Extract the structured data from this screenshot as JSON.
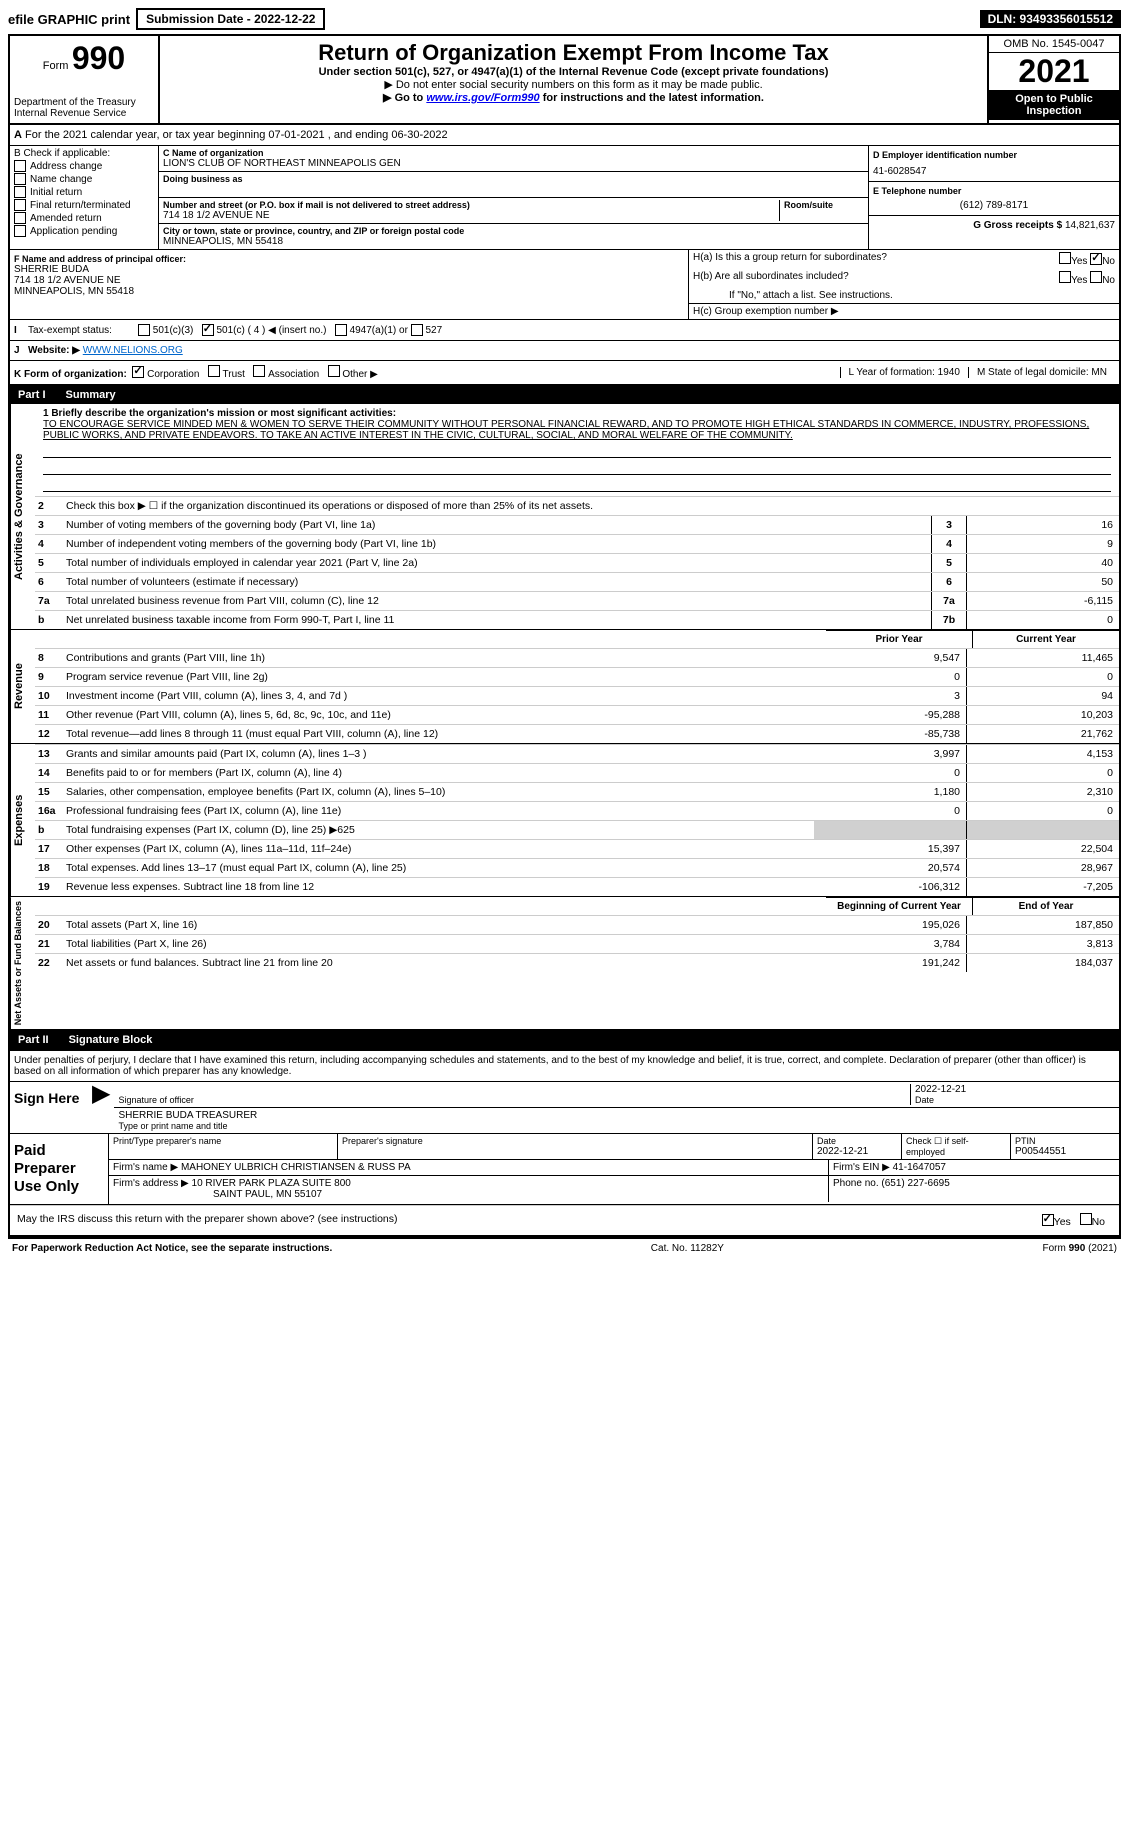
{
  "top": {
    "efile": "efile GRAPHIC print",
    "submission": "Submission Date - 2022-12-22",
    "dln": "DLN: 93493356015512"
  },
  "header": {
    "form_prefix": "Form",
    "form_number": "990",
    "title": "Return of Organization Exempt From Income Tax",
    "subtitle": "Under section 501(c), 527, or 4947(a)(1) of the Internal Revenue Code (except private foundations)",
    "warn": "▶ Do not enter social security numbers on this form as it may be made public.",
    "link_line": "▶ Go to www.irs.gov/Form990 for instructions and the latest information.",
    "omb": "OMB No. 1545-0047",
    "year": "2021",
    "open": "Open to Public Inspection",
    "dept": "Department of the Treasury Internal Revenue Service"
  },
  "row_a": "For the 2021 calendar year, or tax year beginning 07-01-2021    , and ending 06-30-2022",
  "row_a_prefix": "A",
  "section_b": {
    "label": "B Check if applicable:",
    "checks": [
      "Address change",
      "Name change",
      "Initial return",
      "Final return/terminated",
      "Amended return",
      "Application pending"
    ],
    "c_label": "C Name of organization",
    "c_name": "LION'S CLUB OF NORTHEAST MINNEAPOLIS GEN",
    "dba_label": "Doing business as",
    "street_label": "Number and street (or P.O. box if mail is not delivered to street address)",
    "room_label": "Room/suite",
    "street": "714 18 1/2 AVENUE NE",
    "city_label": "City or town, state or province, country, and ZIP or foreign postal code",
    "city": "MINNEAPOLIS, MN  55418",
    "d_label": "D Employer identification number",
    "d_ein": "41-6028547",
    "e_label": "E Telephone number",
    "e_phone": "(612) 789-8171",
    "g_label": "G Gross receipts $",
    "g_val": "14,821,637"
  },
  "section_f": {
    "label": "F  Name and address of principal officer:",
    "name": "SHERRIE BUDA",
    "addr1": "714 18 1/2 AVENUE NE",
    "addr2": "MINNEAPOLIS, MN  55418",
    "ha": "H(a)  Is this a group return for subordinates?",
    "hb": "H(b)  Are all subordinates included?",
    "hb_note": "If \"No,\" attach a list. See instructions.",
    "hc": "H(c)  Group exemption number ▶",
    "yes": "Yes",
    "no": "No"
  },
  "row_i": {
    "label": "I",
    "text": "Tax-exempt status:",
    "opt1": "501(c)(3)",
    "opt2": "501(c) ( 4 ) ◀ (insert no.)",
    "opt3": "4947(a)(1) or",
    "opt4": "527"
  },
  "row_j": {
    "label": "J",
    "text": "Website: ▶",
    "url": "WWW.NELIONS.ORG"
  },
  "row_k": {
    "label": "K Form of organization:",
    "opts": [
      "Corporation",
      "Trust",
      "Association",
      "Other ▶"
    ]
  },
  "row_l": {
    "l": "L Year of formation: 1940",
    "m": "M State of legal domicile: MN"
  },
  "part1": {
    "header": "Part I",
    "title": "Summary",
    "q1": "1  Briefly describe the organization's mission or most significant activities:",
    "mission": "TO ENCOURAGE SERVICE MINDED MEN & WOMEN TO SERVE THEIR COMMUNITY WITHOUT PERSONAL FINANCIAL REWARD, AND TO PROMOTE HIGH ETHICAL STANDARDS IN COMMERCE, INDUSTRY, PROFESSIONS, PUBLIC WORKS, AND PRIVATE ENDEAVORS. TO TAKE AN ACTIVE INTEREST IN THE CIVIC, CULTURAL, SOCIAL, AND MORAL WELFARE OF THE COMMUNITY.",
    "q2": "Check this box ▶ ☐  if the organization discontinued its operations or disposed of more than 25% of its net assets.",
    "rows_gov": [
      {
        "n": "3",
        "t": "Number of voting members of the governing body (Part VI, line 1a)",
        "box": "3",
        "v": "16"
      },
      {
        "n": "4",
        "t": "Number of independent voting members of the governing body (Part VI, line 1b)",
        "box": "4",
        "v": "9"
      },
      {
        "n": "5",
        "t": "Total number of individuals employed in calendar year 2021 (Part V, line 2a)",
        "box": "5",
        "v": "40"
      },
      {
        "n": "6",
        "t": "Total number of volunteers (estimate if necessary)",
        "box": "6",
        "v": "50"
      },
      {
        "n": "7a",
        "t": "Total unrelated business revenue from Part VIII, column (C), line 12",
        "box": "7a",
        "v": "-6,115"
      },
      {
        "n": "b",
        "t": "Net unrelated business taxable income from Form 990-T, Part I, line 11",
        "box": "7b",
        "v": "0"
      }
    ],
    "col_prior": "Prior Year",
    "col_current": "Current Year",
    "rows_rev": [
      {
        "n": "8",
        "t": "Contributions and grants (Part VIII, line 1h)",
        "p": "9,547",
        "c": "11,465"
      },
      {
        "n": "9",
        "t": "Program service revenue (Part VIII, line 2g)",
        "p": "0",
        "c": "0"
      },
      {
        "n": "10",
        "t": "Investment income (Part VIII, column (A), lines 3, 4, and 7d )",
        "p": "3",
        "c": "94"
      },
      {
        "n": "11",
        "t": "Other revenue (Part VIII, column (A), lines 5, 6d, 8c, 9c, 10c, and 11e)",
        "p": "-95,288",
        "c": "10,203"
      },
      {
        "n": "12",
        "t": "Total revenue—add lines 8 through 11 (must equal Part VIII, column (A), line 12)",
        "p": "-85,738",
        "c": "21,762"
      }
    ],
    "rows_exp": [
      {
        "n": "13",
        "t": "Grants and similar amounts paid (Part IX, column (A), lines 1–3 )",
        "p": "3,997",
        "c": "4,153"
      },
      {
        "n": "14",
        "t": "Benefits paid to or for members (Part IX, column (A), line 4)",
        "p": "0",
        "c": "0"
      },
      {
        "n": "15",
        "t": "Salaries, other compensation, employee benefits (Part IX, column (A), lines 5–10)",
        "p": "1,180",
        "c": "2,310"
      },
      {
        "n": "16a",
        "t": "Professional fundraising fees (Part IX, column (A), line 11e)",
        "p": "0",
        "c": "0"
      },
      {
        "n": "b",
        "t": "Total fundraising expenses (Part IX, column (D), line 25) ▶625",
        "p": "",
        "c": "",
        "shaded": true
      },
      {
        "n": "17",
        "t": "Other expenses (Part IX, column (A), lines 11a–11d, 11f–24e)",
        "p": "15,397",
        "c": "22,504"
      },
      {
        "n": "18",
        "t": "Total expenses. Add lines 13–17 (must equal Part IX, column (A), line 25)",
        "p": "20,574",
        "c": "28,967"
      },
      {
        "n": "19",
        "t": "Revenue less expenses. Subtract line 18 from line 12",
        "p": "-106,312",
        "c": "-7,205"
      }
    ],
    "col_begin": "Beginning of Current Year",
    "col_end": "End of Year",
    "rows_net": [
      {
        "n": "20",
        "t": "Total assets (Part X, line 16)",
        "p": "195,026",
        "c": "187,850"
      },
      {
        "n": "21",
        "t": "Total liabilities (Part X, line 26)",
        "p": "3,784",
        "c": "3,813"
      },
      {
        "n": "22",
        "t": "Net assets or fund balances. Subtract line 21 from line 20",
        "p": "191,242",
        "c": "184,037"
      }
    ],
    "vlabel_gov": "Activities & Governance",
    "vlabel_rev": "Revenue",
    "vlabel_exp": "Expenses",
    "vlabel_net": "Net Assets or Fund Balances"
  },
  "part2": {
    "header": "Part II",
    "title": "Signature Block",
    "declare": "Under penalties of perjury, I declare that I have examined this return, including accompanying schedules and statements, and to the best of my knowledge and belief, it is true, correct, and complete. Declaration of preparer (other than officer) is based on all information of which preparer has any knowledge.",
    "sign_here": "Sign Here",
    "sig_of_officer": "Signature of officer",
    "date": "Date",
    "sig_date": "2022-12-21",
    "officer_name": "SHERRIE BUDA  TREASURER",
    "type_name": "Type or print name and title",
    "paid": "Paid Preparer Use Only",
    "print_name_label": "Print/Type preparer's name",
    "prep_sig_label": "Preparer's signature",
    "date_label": "Date",
    "prep_date": "2022-12-21",
    "check_self": "Check ☐ if self-employed",
    "ptin_label": "PTIN",
    "ptin": "P00544551",
    "firm_name_label": "Firm's name    ▶",
    "firm_name": "MAHONEY ULBRICH CHRISTIANSEN & RUSS PA",
    "firm_ein_label": "Firm's EIN ▶",
    "firm_ein": "41-1647057",
    "firm_addr_label": "Firm's address ▶",
    "firm_addr1": "10 RIVER PARK PLAZA SUITE 800",
    "firm_addr2": "SAINT PAUL, MN  55107",
    "phone_label": "Phone no.",
    "phone": "(651) 227-6695",
    "discuss": "May the IRS discuss this return with the preparer shown above? (see instructions)",
    "yes": "Yes",
    "no": "No"
  },
  "footer": {
    "left": "For Paperwork Reduction Act Notice, see the separate instructions.",
    "mid": "Cat. No. 11282Y",
    "right": "Form 990 (2021)"
  }
}
